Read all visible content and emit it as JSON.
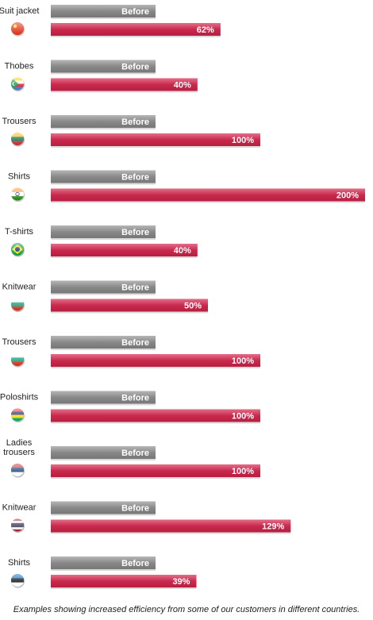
{
  "chart_data": {
    "type": "bar",
    "before_label": "Before",
    "categories": [
      {
        "label": [
          "Suit jacket"
        ],
        "flag": "china",
        "value": 62,
        "value_label": "62%"
      },
      {
        "label": [
          "Thobes"
        ],
        "flag": "comoros",
        "value": 40,
        "value_label": "40%"
      },
      {
        "label": [
          "Trousers"
        ],
        "flag": "lithuania",
        "value": 100,
        "value_label": "100%"
      },
      {
        "label": [
          "Shirts"
        ],
        "flag": "india",
        "value": 200,
        "value_label": "200%"
      },
      {
        "label": [
          "T-shirts"
        ],
        "flag": "brazil",
        "value": 40,
        "value_label": "40%"
      },
      {
        "label": [
          "Knitwear"
        ],
        "flag": "bulgaria",
        "value": 50,
        "value_label": "50%"
      },
      {
        "label": [
          "Trousers"
        ],
        "flag": "bulgaria",
        "value": 100,
        "value_label": "100%"
      },
      {
        "label": [
          "Poloshirts"
        ],
        "flag": "mauritius",
        "value": 100,
        "value_label": "100%"
      },
      {
        "label": [
          "Ladies",
          "trousers"
        ],
        "flag": "serbia",
        "value": 100,
        "value_label": "100%"
      },
      {
        "label": [
          "Knitwear"
        ],
        "flag": "thailand",
        "value": 129,
        "value_label": "129%"
      },
      {
        "label": [
          "Shirts"
        ],
        "flag": "estonia",
        "value": 39,
        "value_label": "39%"
      }
    ],
    "colors": {
      "before": "#8a8a8a",
      "after": "#c8234a"
    }
  },
  "caption": "Examples showing increased efficiency from some of our customers in different countries."
}
